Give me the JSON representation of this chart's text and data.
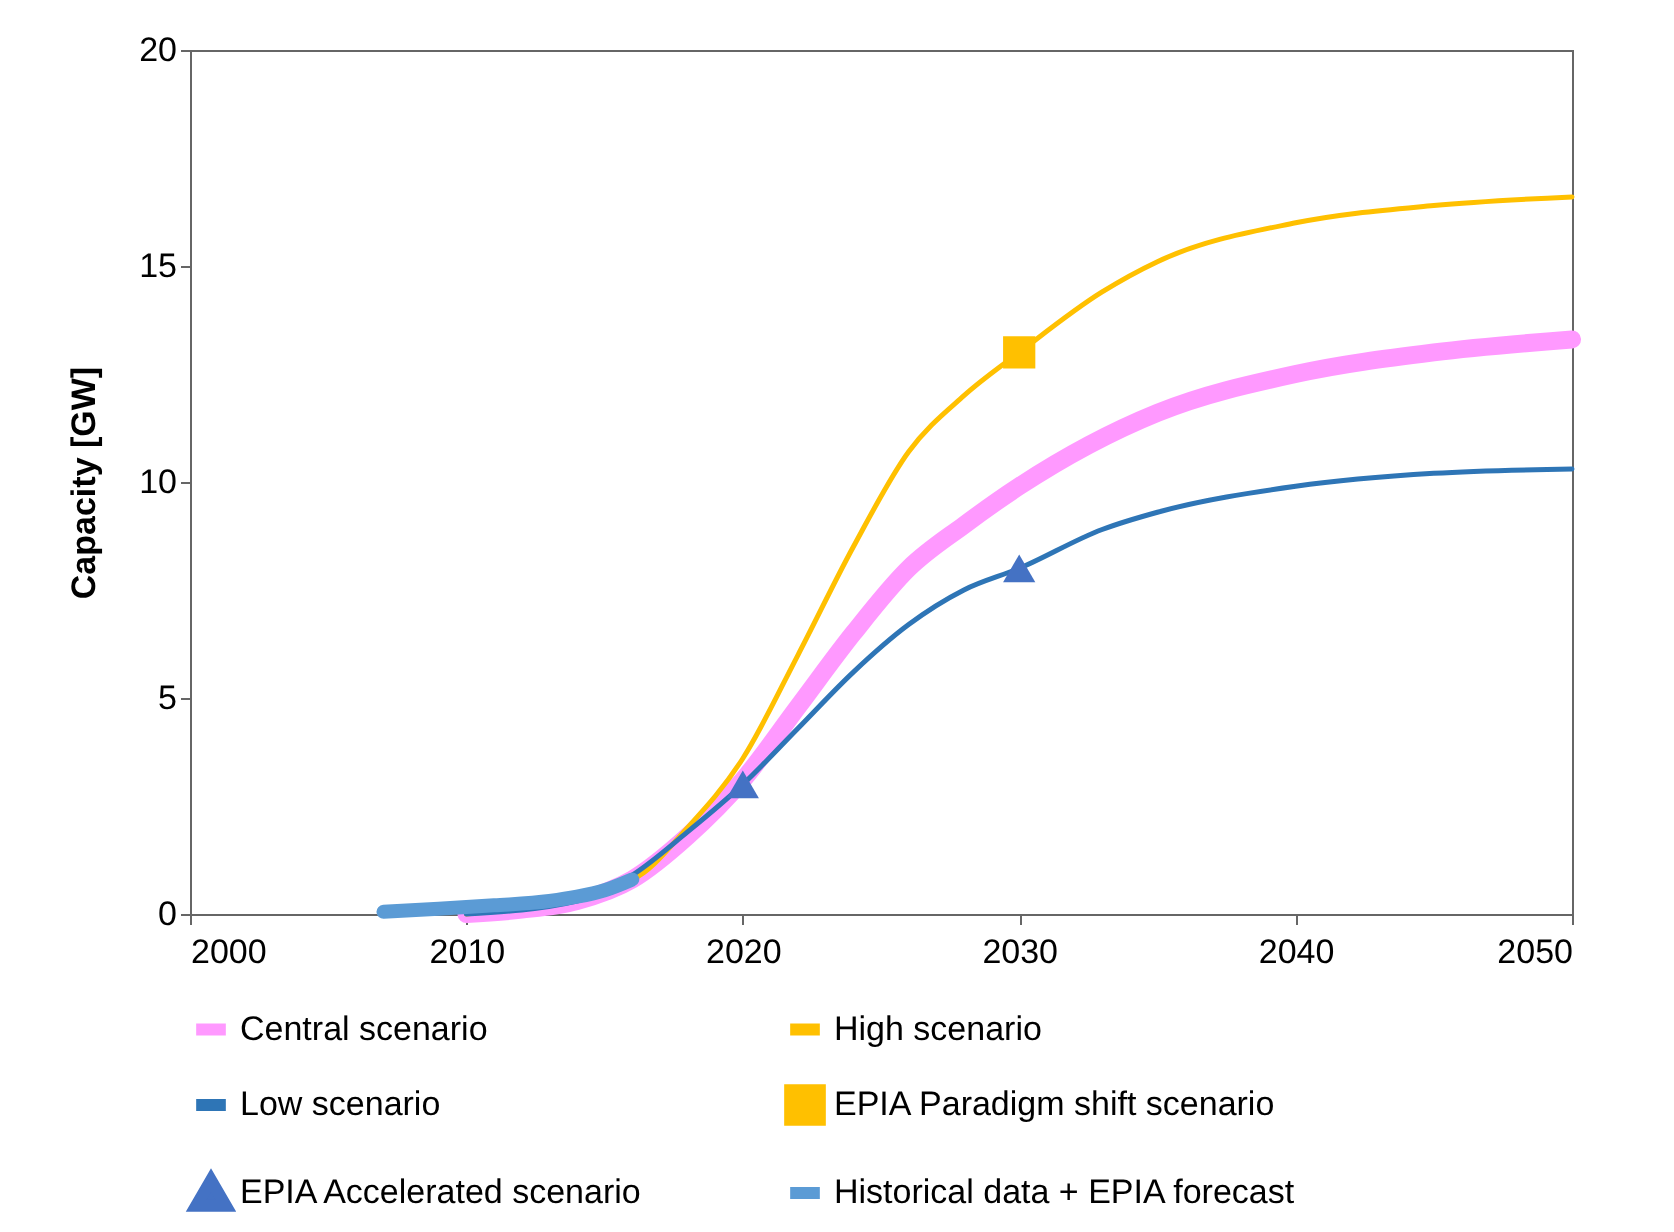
{
  "chart_data": {
    "type": "line",
    "ylabel": "Capacity [GW]",
    "xlim": [
      2000,
      2050
    ],
    "xticks": [
      2000,
      2010,
      2020,
      2030,
      2040,
      2050
    ],
    "ylim": [
      0,
      20
    ],
    "yticks": [
      0,
      5,
      10,
      15,
      20
    ],
    "grid": false,
    "legend": "bottom",
    "series": [
      {
        "name": "Central scenario",
        "color": "#ff99ff",
        "x": [
          2010,
          2012,
          2014,
          2016,
          2018,
          2020,
          2022,
          2024,
          2026,
          2028,
          2030,
          2035,
          2040,
          2045,
          2050
        ],
        "values": [
          0,
          0.1,
          0.3,
          0.8,
          1.8,
          3.1,
          4.8,
          6.5,
          8.0,
          9.0,
          9.9,
          11.6,
          12.5,
          13.0,
          13.3
        ]
      },
      {
        "name": "High scenario",
        "color": "#ffc000",
        "x": [
          2010,
          2016,
          2018,
          2020,
          2022,
          2024,
          2026,
          2028,
          2030,
          2033,
          2035,
          2040,
          2045,
          2050
        ],
        "values": [
          0,
          0.8,
          2.0,
          3.6,
          6.0,
          8.5,
          10.7,
          12.0,
          13.0,
          14.4,
          15.1,
          16.0,
          16.4,
          16.6
        ]
      },
      {
        "name": "Low scenario",
        "color": "#2e75b6",
        "x": [
          2010,
          2014,
          2016,
          2018,
          2020,
          2022,
          2024,
          2026,
          2028,
          2030,
          2033,
          2035,
          2040,
          2045,
          2050
        ],
        "values": [
          0,
          0.3,
          0.9,
          1.9,
          3.0,
          4.3,
          5.6,
          6.7,
          7.5,
          8.0,
          8.9,
          9.3,
          9.9,
          10.2,
          10.3
        ]
      },
      {
        "name": "EPIA Paradigm shift scenario",
        "type": "scatter",
        "marker": "square",
        "color": "#ffc000",
        "x": [
          2030
        ],
        "values": [
          13
        ]
      },
      {
        "name": "EPIA Accelerated scenario",
        "type": "scatter",
        "marker": "triangle",
        "color": "#4472c4",
        "x": [
          2020,
          2030
        ],
        "values": [
          3,
          8
        ]
      },
      {
        "name": "Historical data + EPIA forecast",
        "color": "#5b9bd5",
        "x": [
          2007,
          2009,
          2011,
          2013,
          2014,
          2015,
          2016
        ],
        "values": [
          0.05,
          0.12,
          0.2,
          0.3,
          0.4,
          0.55,
          0.8
        ]
      }
    ]
  }
}
